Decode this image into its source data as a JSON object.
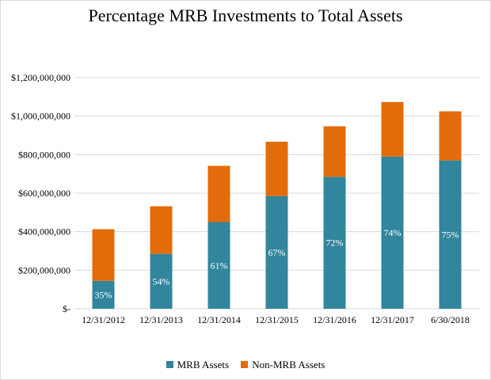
{
  "chart_data": {
    "type": "bar",
    "stacked": true,
    "title": "Percentage MRB Investments to Total Assets",
    "categories": [
      "12/31/2012",
      "12/31/2013",
      "12/31/2014",
      "12/31/2015",
      "12/31/2016",
      "12/31/2017",
      "6/30/2018"
    ],
    "series": [
      {
        "name": "MRB Assets",
        "color": "#31859c",
        "values": [
          145000000,
          285000000,
          450000000,
          585000000,
          685000000,
          790000000,
          770000000
        ],
        "labels": [
          "35%",
          "54%",
          "61%",
          "67%",
          "72%",
          "74%",
          "75%"
        ]
      },
      {
        "name": "Non-MRB Assets",
        "color": "#e36c0a",
        "values": [
          268000000,
          247000000,
          292000000,
          282000000,
          262000000,
          283000000,
          255000000
        ]
      }
    ],
    "yticks": [
      "$-",
      "$200,000,000",
      "$400,000,000",
      "$600,000,000",
      "$800,000,000",
      "$1,000,000,000",
      "$1,200,000,000"
    ],
    "ylim": [
      0,
      1200000000
    ],
    "xlabel": "",
    "ylabel": "",
    "grid": true,
    "legend_position": "bottom"
  }
}
